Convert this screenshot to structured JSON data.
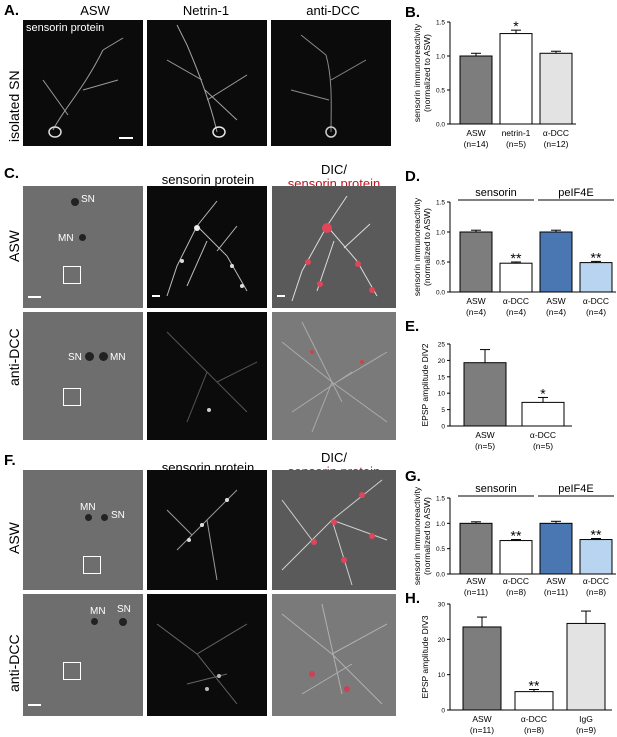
{
  "panels": {
    "A": {
      "label": "A.",
      "col_titles": [
        "ASW",
        "Netrin-1",
        "anti-DCC"
      ],
      "inset_label": "sensorin protein",
      "row_label": "isolated SN"
    },
    "B": {
      "label": "B."
    },
    "C": {
      "label": "C.",
      "col_title_2": "sensorin protein",
      "col_title_3a": "DIC/",
      "col_title_3b": "sensorin protein",
      "row_labels": [
        "ASW",
        "anti-DCC"
      ],
      "cell_labels": [
        "SN",
        "MN",
        "SN",
        "MN"
      ]
    },
    "D": {
      "label": "D.",
      "group1": "sensorin",
      "group2": "peIF4E"
    },
    "E": {
      "label": "E."
    },
    "F": {
      "label": "F.",
      "col_title_2": "sensorin protein",
      "col_title_3a": "DIC/",
      "col_title_3b": "sensorin protein",
      "row_labels": [
        "ASW",
        "anti-DCC"
      ],
      "cell_labels": [
        "MN",
        "SN",
        "MN",
        "SN"
      ]
    },
    "G": {
      "label": "G.",
      "group1": "sensorin",
      "group2": "peIF4E"
    },
    "H": {
      "label": "H."
    }
  },
  "chart_data": [
    {
      "id": "B",
      "type": "bar",
      "ylabel": "sensorin immunoreactivity\n(normalized to ASW)",
      "ylim": [
        0,
        1.5
      ],
      "yticks": [
        0.0,
        0.5,
        1.0,
        1.5
      ],
      "categories": [
        "ASW",
        "netrin-1",
        "α-DCC"
      ],
      "n": [
        "(n=14)",
        "(n=5)",
        "(n=12)"
      ],
      "values": [
        1.0,
        1.33,
        1.04
      ],
      "errors": [
        0.04,
        0.05,
        0.03
      ],
      "colors": [
        "#7d7d7d",
        "#ffffff",
        "#e3e3e3"
      ],
      "sig": [
        "",
        "*",
        ""
      ]
    },
    {
      "id": "D",
      "type": "bar",
      "ylabel": "sensorin immunoreactivity\n(normalized to ASW)",
      "ylim": [
        0,
        1.5
      ],
      "yticks": [
        0.0,
        0.5,
        1.0,
        1.5
      ],
      "categories": [
        "ASW",
        "α-DCC",
        "ASW",
        "α-DCC"
      ],
      "n": [
        "(n=4)",
        "(n=4)",
        "(n=4)",
        "(n=4)"
      ],
      "values": [
        1.0,
        0.48,
        1.0,
        0.49
      ],
      "errors": [
        0.03,
        0.02,
        0.03,
        0.02
      ],
      "colors": [
        "#7d7d7d",
        "#ffffff",
        "#4a76b2",
        "#b8d4f0"
      ],
      "sig": [
        "",
        "**",
        "",
        "**"
      ]
    },
    {
      "id": "E",
      "type": "bar",
      "ylabel": "EPSP amplitude DIV2",
      "ylim": [
        0,
        25
      ],
      "yticks": [
        0,
        5,
        10,
        15,
        20,
        25
      ],
      "categories": [
        "ASW",
        "α-DCC"
      ],
      "n": [
        "(n=5)",
        "(n=5)"
      ],
      "values": [
        19.3,
        7.2
      ],
      "errors": [
        4.0,
        1.5
      ],
      "colors": [
        "#7d7d7d",
        "#ffffff"
      ],
      "sig": [
        "",
        "*"
      ]
    },
    {
      "id": "G",
      "type": "bar",
      "ylabel": "sensorin immunoreactivity\n(normalized to ASW)",
      "ylim": [
        0,
        1.5
      ],
      "yticks": [
        0.0,
        0.5,
        1.0,
        1.5
      ],
      "categories": [
        "ASW",
        "α-DCC",
        "ASW",
        "α-DCC"
      ],
      "n": [
        "(n=11)",
        "(n=8)",
        "(n=11)",
        "(n=8)"
      ],
      "values": [
        1.0,
        0.66,
        1.0,
        0.68
      ],
      "errors": [
        0.03,
        0.02,
        0.04,
        0.02
      ],
      "colors": [
        "#7d7d7d",
        "#ffffff",
        "#4a76b2",
        "#b8d4f0"
      ],
      "sig": [
        "",
        "**",
        "",
        "**"
      ]
    },
    {
      "id": "H",
      "type": "bar",
      "ylabel": "EPSP amplitude DIV3",
      "ylim": [
        0,
        30
      ],
      "yticks": [
        0,
        10,
        20,
        30
      ],
      "categories": [
        "ASW",
        "α-DCC",
        "IgG"
      ],
      "n": [
        "(n=11)",
        "(n=8)",
        "(n=9)"
      ],
      "values": [
        23.5,
        5.2,
        24.5
      ],
      "errors": [
        2.8,
        0.6,
        3.5
      ],
      "colors": [
        "#7d7d7d",
        "#ffffff",
        "#e3e3e3"
      ],
      "sig": [
        "",
        "**",
        ""
      ]
    }
  ]
}
